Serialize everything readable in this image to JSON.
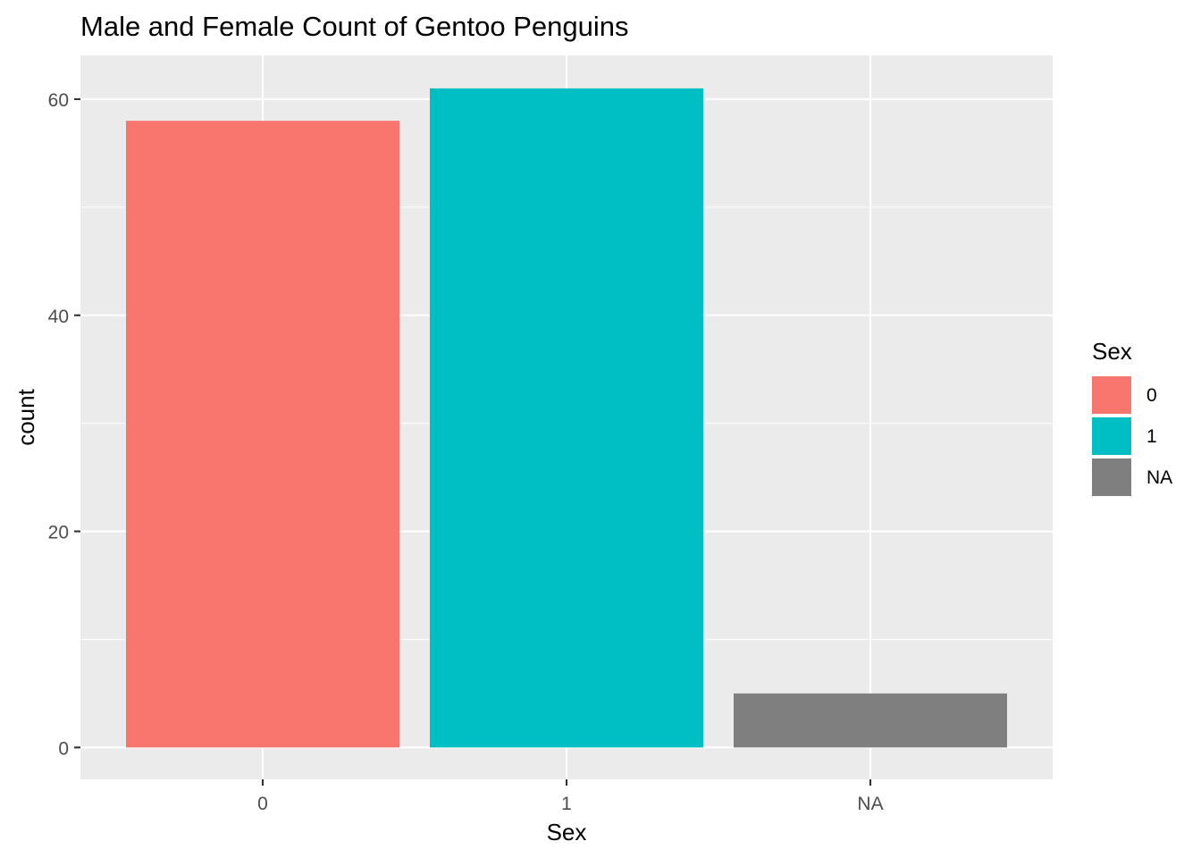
{
  "chart_data": {
    "type": "bar",
    "title": "Male and Female Count of Gentoo Penguins",
    "xlabel": "Sex",
    "ylabel": "count",
    "categories": [
      "0",
      "1",
      "NA"
    ],
    "values": [
      58,
      61,
      5
    ],
    "ylim": [
      -2.95,
      64.05
    ],
    "y_ticks": [
      0,
      20,
      40,
      60
    ],
    "y_minor_ticks": [
      10,
      30,
      50
    ],
    "grid": true,
    "legend": {
      "title": "Sex",
      "position": "right",
      "entries": [
        "0",
        "1",
        "NA"
      ]
    },
    "colors": [
      "#F8766D",
      "#00BFC4",
      "#7F7F7F"
    ],
    "panel_background": "#EBEBEB",
    "grid_color": "#FFFFFF"
  }
}
